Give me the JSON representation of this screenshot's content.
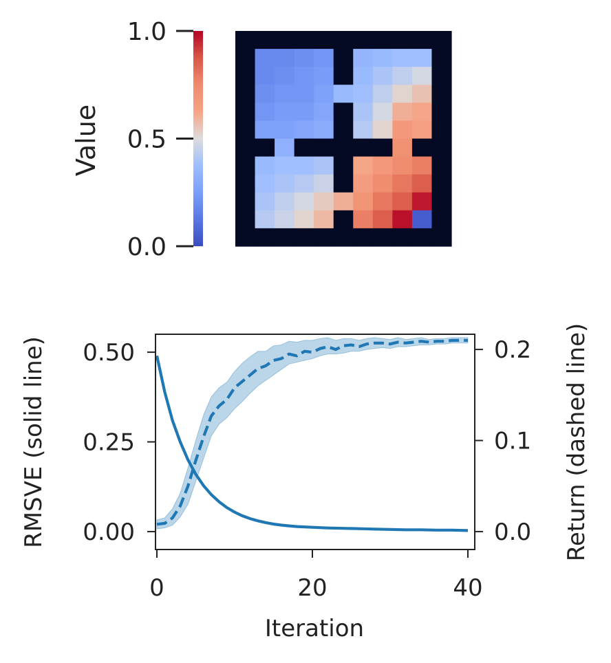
{
  "chart_data": [
    {
      "type": "heatmap",
      "title": "",
      "colorbar": {
        "label": "Value",
        "ticks": [
          0.0,
          0.5,
          1.0
        ],
        "tick_labels": [
          "0.0",
          "0.5",
          "1.0"
        ],
        "colormap": "coolwarm",
        "range": [
          0,
          1
        ]
      },
      "wall_color": "#050a24",
      "wall_marker": -1,
      "grid": [
        [
          -1,
          -1,
          -1,
          -1,
          -1,
          -1,
          -1,
          -1,
          -1,
          -1,
          -1
        ],
        [
          -1,
          0.18,
          0.18,
          0.2,
          0.22,
          -1,
          0.34,
          0.36,
          0.38,
          0.38,
          -1
        ],
        [
          -1,
          0.18,
          0.2,
          0.22,
          0.24,
          -1,
          0.36,
          0.4,
          0.44,
          0.48,
          -1
        ],
        [
          -1,
          0.2,
          0.22,
          0.22,
          0.26,
          0.36,
          0.38,
          0.44,
          0.52,
          0.56,
          -1
        ],
        [
          -1,
          0.22,
          0.24,
          0.24,
          0.28,
          -1,
          0.4,
          0.48,
          0.6,
          0.62,
          -1
        ],
        [
          -1,
          0.26,
          0.26,
          0.28,
          0.3,
          -1,
          0.42,
          0.52,
          0.68,
          0.64,
          -1
        ],
        [
          -1,
          -1,
          0.32,
          -1,
          -1,
          -1,
          -1,
          -1,
          0.72,
          -1,
          -1
        ],
        [
          -1,
          0.36,
          0.38,
          0.38,
          0.4,
          -1,
          0.62,
          0.68,
          0.74,
          0.78,
          -1
        ],
        [
          -1,
          0.38,
          0.4,
          0.42,
          0.46,
          -1,
          0.66,
          0.74,
          0.8,
          0.86,
          -1
        ],
        [
          -1,
          0.4,
          0.44,
          0.48,
          0.54,
          0.6,
          0.7,
          0.8,
          0.86,
          0.97,
          -1
        ],
        [
          -1,
          0.42,
          0.46,
          0.52,
          0.58,
          -1,
          0.78,
          0.86,
          0.98,
          0.05,
          -1
        ],
        [
          -1,
          -1,
          -1,
          -1,
          -1,
          -1,
          -1,
          -1,
          -1,
          -1,
          -1
        ]
      ]
    },
    {
      "type": "line",
      "xlabel": "Iteration",
      "ylabel_left": "RMSVE (solid line)",
      "ylabel_right": "Return (dashed line)",
      "xlim": [
        0,
        40
      ],
      "ylim_left": [
        -0.05,
        0.55
      ],
      "ylim_right": [
        -0.0197,
        0.2167
      ],
      "x_ticks": [
        0,
        20,
        40
      ],
      "x_tick_labels": [
        "0",
        "20",
        "40"
      ],
      "y_ticks_left": [
        0.0,
        0.25,
        0.5
      ],
      "y_tick_labels_left": [
        "0.00",
        "0.25",
        "0.50"
      ],
      "y_ticks_right": [
        0.0,
        0.1,
        0.2
      ],
      "y_tick_labels_right": [
        "0.0",
        "0.1",
        "0.2"
      ],
      "color": "#1f77b4",
      "series": [
        {
          "name": "RMSVE",
          "axis": "left",
          "style": "solid",
          "x": [
            0,
            1,
            2,
            3,
            4,
            5,
            6,
            7,
            8,
            9,
            10,
            11,
            12,
            13,
            14,
            15,
            16,
            17,
            18,
            19,
            20,
            22,
            24,
            26,
            28,
            30,
            32,
            34,
            36,
            38,
            40
          ],
          "y": [
            0.49,
            0.39,
            0.31,
            0.25,
            0.2,
            0.16,
            0.128,
            0.103,
            0.083,
            0.067,
            0.054,
            0.044,
            0.036,
            0.03,
            0.025,
            0.021,
            0.018,
            0.016,
            0.014,
            0.013,
            0.012,
            0.01,
            0.009,
            0.008,
            0.007,
            0.006,
            0.005,
            0.005,
            0.004,
            0.004,
            0.003
          ]
        },
        {
          "name": "Return",
          "axis": "right",
          "style": "dashed",
          "x": [
            0,
            1,
            2,
            3,
            4,
            5,
            6,
            7,
            8,
            9,
            10,
            11,
            12,
            13,
            14,
            15,
            16,
            17,
            18,
            19,
            20,
            21,
            22,
            23,
            24,
            25,
            26,
            27,
            28,
            29,
            30,
            31,
            32,
            33,
            34,
            35,
            36,
            37,
            38,
            39,
            40
          ],
          "y": [
            0.008,
            0.009,
            0.015,
            0.028,
            0.05,
            0.078,
            0.104,
            0.127,
            0.138,
            0.145,
            0.158,
            0.165,
            0.172,
            0.179,
            0.182,
            0.188,
            0.19,
            0.195,
            0.193,
            0.198,
            0.197,
            0.201,
            0.203,
            0.2,
            0.204,
            0.205,
            0.203,
            0.206,
            0.207,
            0.207,
            0.206,
            0.208,
            0.207,
            0.208,
            0.209,
            0.208,
            0.209,
            0.209,
            0.21,
            0.21,
            0.21
          ],
          "band_lower": [
            0.003,
            0.004,
            0.007,
            0.016,
            0.03,
            0.055,
            0.08,
            0.105,
            0.118,
            0.125,
            0.135,
            0.143,
            0.152,
            0.16,
            0.166,
            0.172,
            0.178,
            0.184,
            0.186,
            0.188,
            0.19,
            0.193,
            0.195,
            0.195,
            0.196,
            0.198,
            0.198,
            0.2,
            0.201,
            0.202,
            0.201,
            0.203,
            0.203,
            0.204,
            0.205,
            0.205,
            0.206,
            0.206,
            0.207,
            0.207,
            0.207
          ],
          "band_upper": [
            0.013,
            0.015,
            0.025,
            0.042,
            0.07,
            0.1,
            0.128,
            0.148,
            0.158,
            0.164,
            0.176,
            0.185,
            0.192,
            0.198,
            0.198,
            0.204,
            0.205,
            0.209,
            0.208,
            0.21,
            0.21,
            0.212,
            0.213,
            0.21,
            0.212,
            0.212,
            0.21,
            0.212,
            0.213,
            0.212,
            0.211,
            0.213,
            0.211,
            0.212,
            0.213,
            0.211,
            0.212,
            0.212,
            0.213,
            0.213,
            0.213
          ]
        }
      ]
    }
  ]
}
